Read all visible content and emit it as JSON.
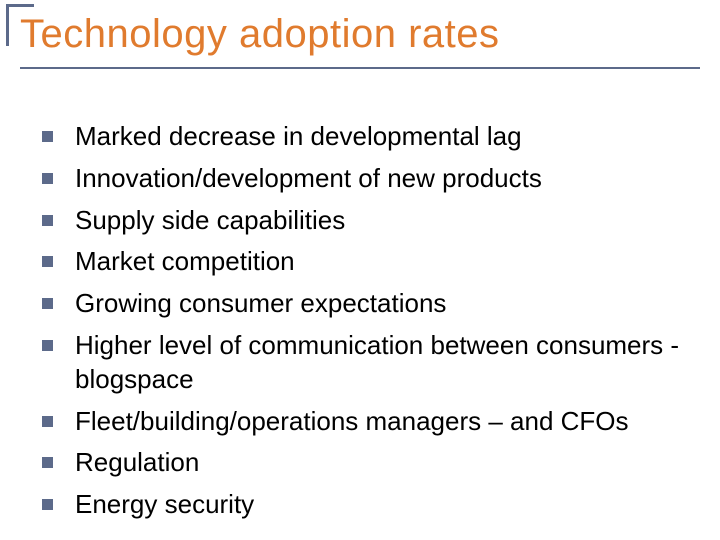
{
  "title": "Technology adoption rates",
  "title_color": "#e07b2e",
  "title_fontsize": 40,
  "accent_color": "#5c6a8a",
  "text_color": "#000000",
  "background_color": "#ffffff",
  "body_fontsize": 26,
  "bullet_size": 11,
  "items": [
    "Marked decrease in developmental lag",
    "Innovation/development of new products",
    "Supply side capabilities",
    "Market competition",
    "Growing consumer expectations",
    "Higher level of communication between consumers - blogspace",
    "Fleet/building/operations managers – and CFOs",
    "Regulation",
    "Energy security"
  ]
}
